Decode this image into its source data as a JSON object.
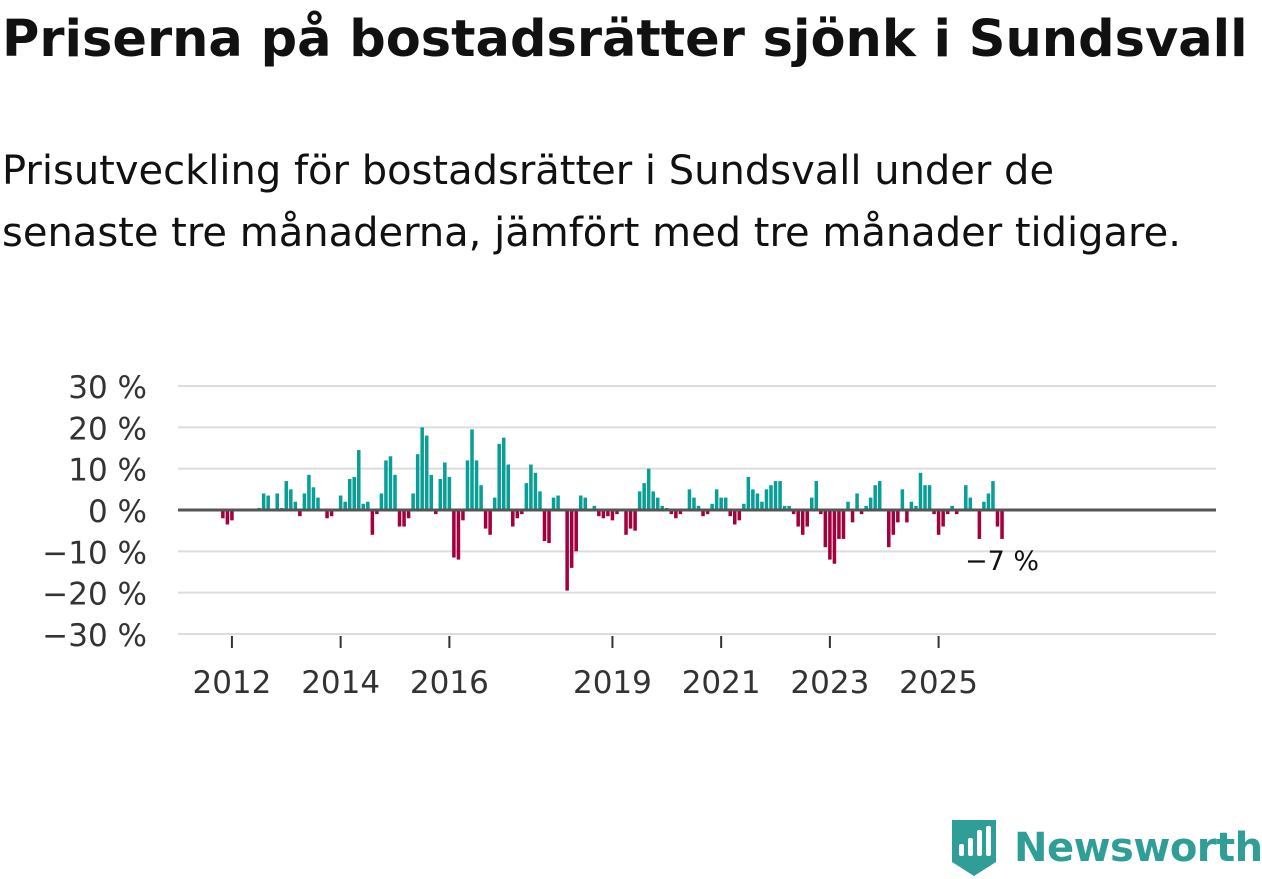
{
  "title": "Priserna på bostadsrätter sjönk i Sundsvall",
  "subtitle": "Prisutveckling för bostadsrätter i Sundsvall under de senaste tre månaderna, jämfört med tre månader tidigare.",
  "brand": "Newsworthy",
  "colors": {
    "positive": "#0a9f96",
    "negative": "#a3003e",
    "grid": "#dddddd",
    "zero": "#555555",
    "text": "#333333",
    "brand": "#2f9e97"
  },
  "chart_data": {
    "type": "bar",
    "ylim": [
      -30,
      30
    ],
    "yticks": [
      30,
      20,
      10,
      0,
      -10,
      -20,
      -30
    ],
    "ytick_labels": [
      "30 %",
      "20 %",
      "10 %",
      "0 %",
      "−10 %",
      "−20 %",
      "−30 %"
    ],
    "xticks": [
      {
        "label": "2012",
        "month_index": 12
      },
      {
        "label": "2014",
        "month_index": 36
      },
      {
        "label": "2016",
        "month_index": 60
      },
      {
        "label": "2019",
        "month_index": 96
      },
      {
        "label": "2021",
        "month_index": 120
      },
      {
        "label": "2023",
        "month_index": 144
      },
      {
        "label": "2025",
        "month_index": 168
      }
    ],
    "start": "2011-01",
    "values": [
      0,
      0,
      0,
      0,
      0,
      0,
      0,
      0,
      0,
      0,
      -2,
      -3.5,
      -2.5,
      0,
      0,
      0,
      0,
      0,
      0.5,
      4,
      3.5,
      0,
      4,
      0.5,
      7,
      5,
      2,
      -1.5,
      4,
      8.5,
      5.5,
      3,
      0,
      -2,
      -1.5,
      0,
      3.5,
      2,
      7.5,
      8,
      14.5,
      1.5,
      2,
      -6,
      -1,
      4,
      12,
      13,
      8.5,
      -4,
      -4,
      -2,
      4,
      13.5,
      20,
      18,
      8.5,
      -1,
      7.5,
      11.5,
      8,
      -11.5,
      -12,
      -2.5,
      12,
      19.5,
      12,
      6,
      -4.5,
      -6,
      3,
      16,
      17.5,
      11,
      -4,
      -2,
      -1,
      6.5,
      11,
      9,
      4.5,
      -7.5,
      -8,
      3,
      3.5,
      0,
      -19.5,
      -14,
      -10,
      3.5,
      3,
      0,
      1,
      -1.5,
      -2,
      -1.5,
      -2.5,
      -1,
      0,
      -6,
      -4.5,
      -5,
      4.5,
      6.5,
      10,
      4.5,
      3,
      1,
      0.5,
      -1,
      -2,
      -1,
      0,
      5,
      3,
      1,
      -1.5,
      -1,
      1.5,
      5,
      3,
      3,
      -1.5,
      -3.5,
      -2.5,
      1.5,
      8,
      5,
      4,
      2,
      5,
      6,
      7,
      7,
      1,
      1,
      -1,
      -4,
      -6,
      -4,
      3,
      7,
      -1,
      -9,
      -12,
      -13,
      -7,
      -7,
      2,
      -3,
      4,
      -1,
      1,
      3,
      6,
      7,
      0,
      -9,
      -6,
      -3,
      5,
      -3,
      2,
      1,
      9,
      6,
      6,
      -1,
      -6,
      -4,
      -1,
      1,
      -1,
      0,
      6,
      3,
      0,
      -7,
      2,
      4,
      7,
      -4,
      -7
    ],
    "annotation": {
      "label": "−7 %",
      "value": -7
    }
  }
}
